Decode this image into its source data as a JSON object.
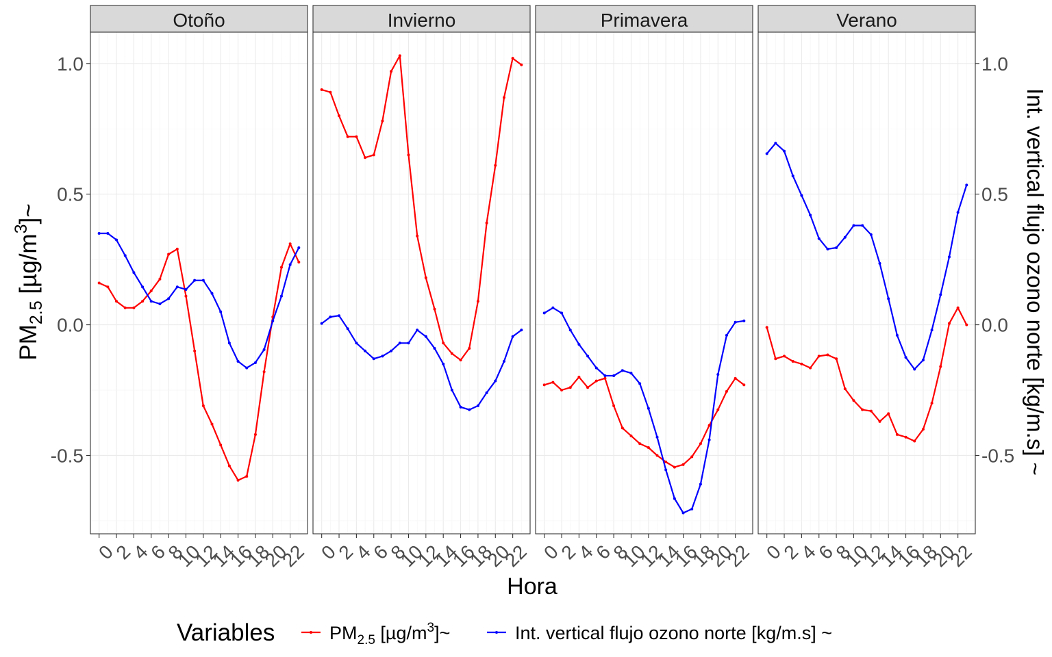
{
  "chart_data": {
    "type": "line",
    "facets": [
      "Otoño",
      "Invierno",
      "Primavera",
      "Verano"
    ],
    "x": [
      0,
      1,
      2,
      3,
      4,
      5,
      6,
      7,
      8,
      9,
      10,
      11,
      12,
      13,
      14,
      15,
      16,
      17,
      18,
      19,
      20,
      21,
      22,
      23
    ],
    "x_ticks": [
      0,
      2,
      4,
      6,
      8,
      10,
      12,
      14,
      16,
      18,
      20,
      22
    ],
    "xlim": [
      -1,
      24
    ],
    "ylim": [
      -0.8,
      1.12
    ],
    "y_ticks": [
      1.0,
      0.5,
      0.0,
      -0.5
    ],
    "y_tick_labels": [
      "1.0",
      "0.5",
      "0.0",
      "-0.5"
    ],
    "xlabel": "Hora",
    "ylabel": {
      "prefix": "PM",
      "sub": "2.5",
      "mid": " [µg/m",
      "sup": "3",
      "suffix": "]~"
    },
    "y2label": "Int. vertical flujo ozono norte [kg/m.s] ~",
    "legend": {
      "title": "Variables",
      "position": "bottom",
      "pm_label": {
        "prefix": "PM",
        "sub": "2.5",
        "mid": " [µg/m",
        "sup": "3",
        "suffix": "]~"
      },
      "flux_label": "Int. vertical flujo ozono norte [kg/m.s] ~"
    },
    "colors": {
      "pm": "#ff0000",
      "flux": "#0000ff"
    },
    "series": [
      {
        "key": "pm",
        "values": [
          [
            0.16,
            0.145,
            0.09,
            0.065,
            0.065,
            0.09,
            0.13,
            0.175,
            0.27,
            0.29,
            0.11,
            -0.1,
            -0.31,
            -0.38,
            -0.46,
            -0.54,
            -0.595,
            -0.58,
            -0.42,
            -0.18,
            0.03,
            0.22,
            0.31,
            0.24
          ],
          [
            0.9,
            0.89,
            0.8,
            0.72,
            0.72,
            0.64,
            0.65,
            0.78,
            0.97,
            1.03,
            0.65,
            0.34,
            0.18,
            0.06,
            -0.07,
            -0.11,
            -0.135,
            -0.09,
            0.09,
            0.39,
            0.61,
            0.87,
            1.02,
            0.995
          ],
          [
            -0.23,
            -0.22,
            -0.25,
            -0.24,
            -0.2,
            -0.24,
            -0.215,
            -0.205,
            -0.31,
            -0.395,
            -0.425,
            -0.455,
            -0.47,
            -0.5,
            -0.525,
            -0.545,
            -0.535,
            -0.505,
            -0.455,
            -0.385,
            -0.325,
            -0.255,
            -0.205,
            -0.23
          ],
          [
            -0.01,
            -0.13,
            -0.12,
            -0.14,
            -0.15,
            -0.165,
            -0.12,
            -0.115,
            -0.13,
            -0.245,
            -0.29,
            -0.325,
            -0.33,
            -0.37,
            -0.34,
            -0.42,
            -0.43,
            -0.445,
            -0.4,
            -0.3,
            -0.16,
            0.005,
            0.065,
            0.0
          ]
        ]
      },
      {
        "key": "flux",
        "values": [
          [
            0.35,
            0.35,
            0.325,
            0.265,
            0.2,
            0.145,
            0.09,
            0.08,
            0.1,
            0.145,
            0.135,
            0.17,
            0.17,
            0.12,
            0.05,
            -0.07,
            -0.14,
            -0.165,
            -0.145,
            -0.095,
            0.015,
            0.11,
            0.23,
            0.295
          ],
          [
            0.005,
            0.03,
            0.035,
            -0.015,
            -0.07,
            -0.1,
            -0.13,
            -0.12,
            -0.1,
            -0.07,
            -0.07,
            -0.02,
            -0.045,
            -0.09,
            -0.15,
            -0.25,
            -0.315,
            -0.325,
            -0.31,
            -0.26,
            -0.215,
            -0.14,
            -0.045,
            -0.02
          ],
          [
            0.045,
            0.065,
            0.045,
            -0.02,
            -0.075,
            -0.12,
            -0.165,
            -0.195,
            -0.195,
            -0.175,
            -0.185,
            -0.225,
            -0.32,
            -0.43,
            -0.555,
            -0.665,
            -0.72,
            -0.705,
            -0.61,
            -0.44,
            -0.19,
            -0.04,
            0.01,
            0.015
          ],
          [
            0.655,
            0.695,
            0.665,
            0.57,
            0.495,
            0.42,
            0.33,
            0.29,
            0.295,
            0.335,
            0.38,
            0.38,
            0.345,
            0.235,
            0.1,
            -0.04,
            -0.125,
            -0.17,
            -0.135,
            -0.02,
            0.115,
            0.26,
            0.43,
            0.535
          ]
        ]
      }
    ],
    "grid": true
  }
}
